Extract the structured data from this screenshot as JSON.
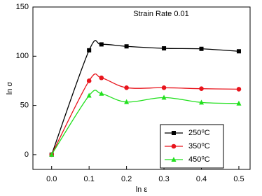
{
  "chart_data": {
    "type": "line",
    "annotation": "Strain Rate  0.01",
    "x_label": "ln ε",
    "y_label": "ln σ",
    "x": [
      0,
      0.1,
      0.133,
      0.2,
      0.3,
      0.4,
      0.5
    ],
    "series": [
      {
        "name": "250⁰C",
        "color": "#000000",
        "marker": "square",
        "values": [
          0,
          106,
          112,
          110,
          108,
          107.5,
          105
        ]
      },
      {
        "name": "350⁰C",
        "color": "#e8141c",
        "marker": "circle",
        "values": [
          0,
          75,
          78,
          68,
          68,
          67,
          66.5
        ]
      },
      {
        "name": "450⁰C",
        "color": "#22e01e",
        "marker": "triangle",
        "values": [
          0,
          60,
          62,
          53.5,
          58,
          53,
          52
        ]
      }
    ],
    "xlim": [
      -0.05,
      0.53
    ],
    "ylim": [
      -15,
      150
    ],
    "xticks": [
      {
        "value": 0,
        "label": "0.0"
      },
      0.1,
      0.2,
      0.3,
      0.4,
      0.5
    ],
    "yticks": [
      0,
      50,
      100,
      150
    ],
    "legend": "lower-right",
    "grid": false
  }
}
